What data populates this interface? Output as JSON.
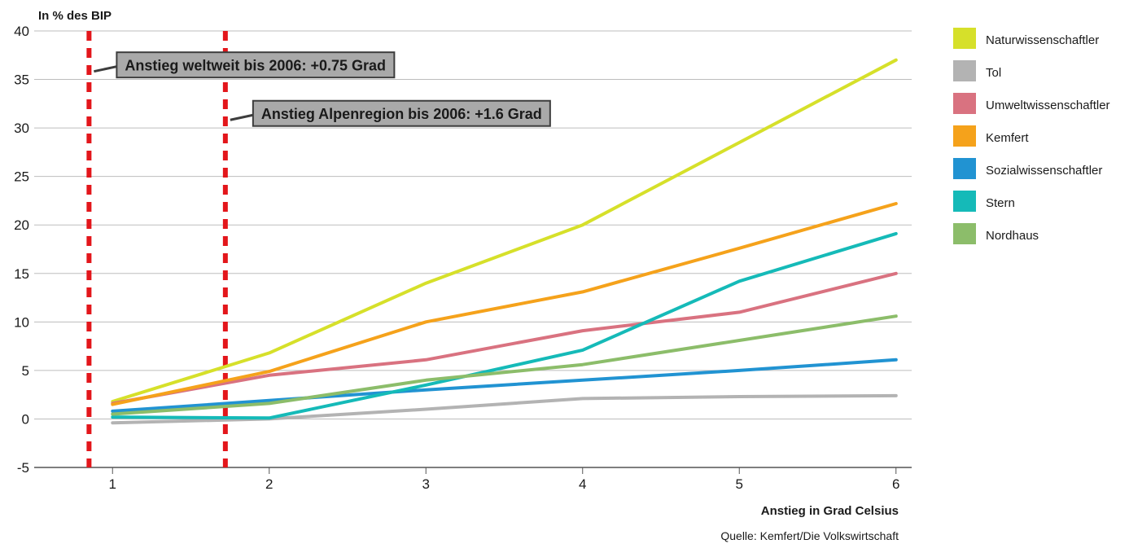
{
  "colors": {
    "grid": "#bdbdbd",
    "axis": "#555555",
    "marker": "#e3161b",
    "annotation_bg": "#a9a9a9",
    "annotation_border": "#3d3d3d"
  },
  "chart_data": {
    "type": "line",
    "title": "",
    "ylabel": "In % des BIP",
    "xlabel": "Anstieg in Grad Celsius",
    "source": "Quelle: Kemfert/Die Volkswirtschaft",
    "x": [
      1,
      2,
      3,
      4,
      5,
      6
    ],
    "xticks": [
      "1",
      "2",
      "3",
      "4",
      "5",
      "6"
    ],
    "xlim": [
      0.5,
      6.1
    ],
    "ylim": [
      -5,
      40
    ],
    "yticks": [
      "40",
      "35",
      "30",
      "25",
      "20",
      "15",
      "10",
      "5",
      "0",
      "-5"
    ],
    "yticks_values": [
      40,
      35,
      30,
      25,
      20,
      15,
      10,
      5,
      0,
      -5
    ],
    "grid": true,
    "legend_position": "right",
    "series": [
      {
        "name": "Naturwissenschaftler",
        "color": "#d6e02a",
        "values": [
          1.8,
          6.8,
          14.0,
          20.0,
          28.5,
          37.0
        ]
      },
      {
        "name": "Tol",
        "color": "#b3b3b3",
        "values": [
          -0.4,
          0.0,
          1.0,
          2.1,
          2.3,
          2.4
        ]
      },
      {
        "name": "Umweltwissenschaftler",
        "color": "#d97280",
        "values": [
          1.6,
          4.5,
          6.1,
          9.1,
          11.0,
          15.0
        ]
      },
      {
        "name": "Kemfert",
        "color": "#f5a21b",
        "values": [
          1.5,
          4.9,
          10.0,
          13.1,
          17.6,
          22.2
        ]
      },
      {
        "name": "Sozialwissenschaftler",
        "color": "#2193d2",
        "values": [
          0.8,
          1.9,
          3.0,
          4.0,
          5.0,
          6.1
        ]
      },
      {
        "name": "Stern",
        "color": "#15bab8",
        "values": [
          0.2,
          0.1,
          3.5,
          7.1,
          14.2,
          19.1
        ]
      },
      {
        "name": "Nordhaus",
        "color": "#8cbd6a",
        "values": [
          0.5,
          1.6,
          4.0,
          5.6,
          8.1,
          10.6
        ]
      }
    ],
    "markers": [
      {
        "x": 0.85,
        "label": "Anstieg weltweit bis 2006: +0.75 Grad",
        "y": 36.5
      },
      {
        "x": 1.72,
        "label": "Anstieg Alpenregion bis 2006: +1.6 Grad",
        "y": 31.5
      }
    ]
  }
}
